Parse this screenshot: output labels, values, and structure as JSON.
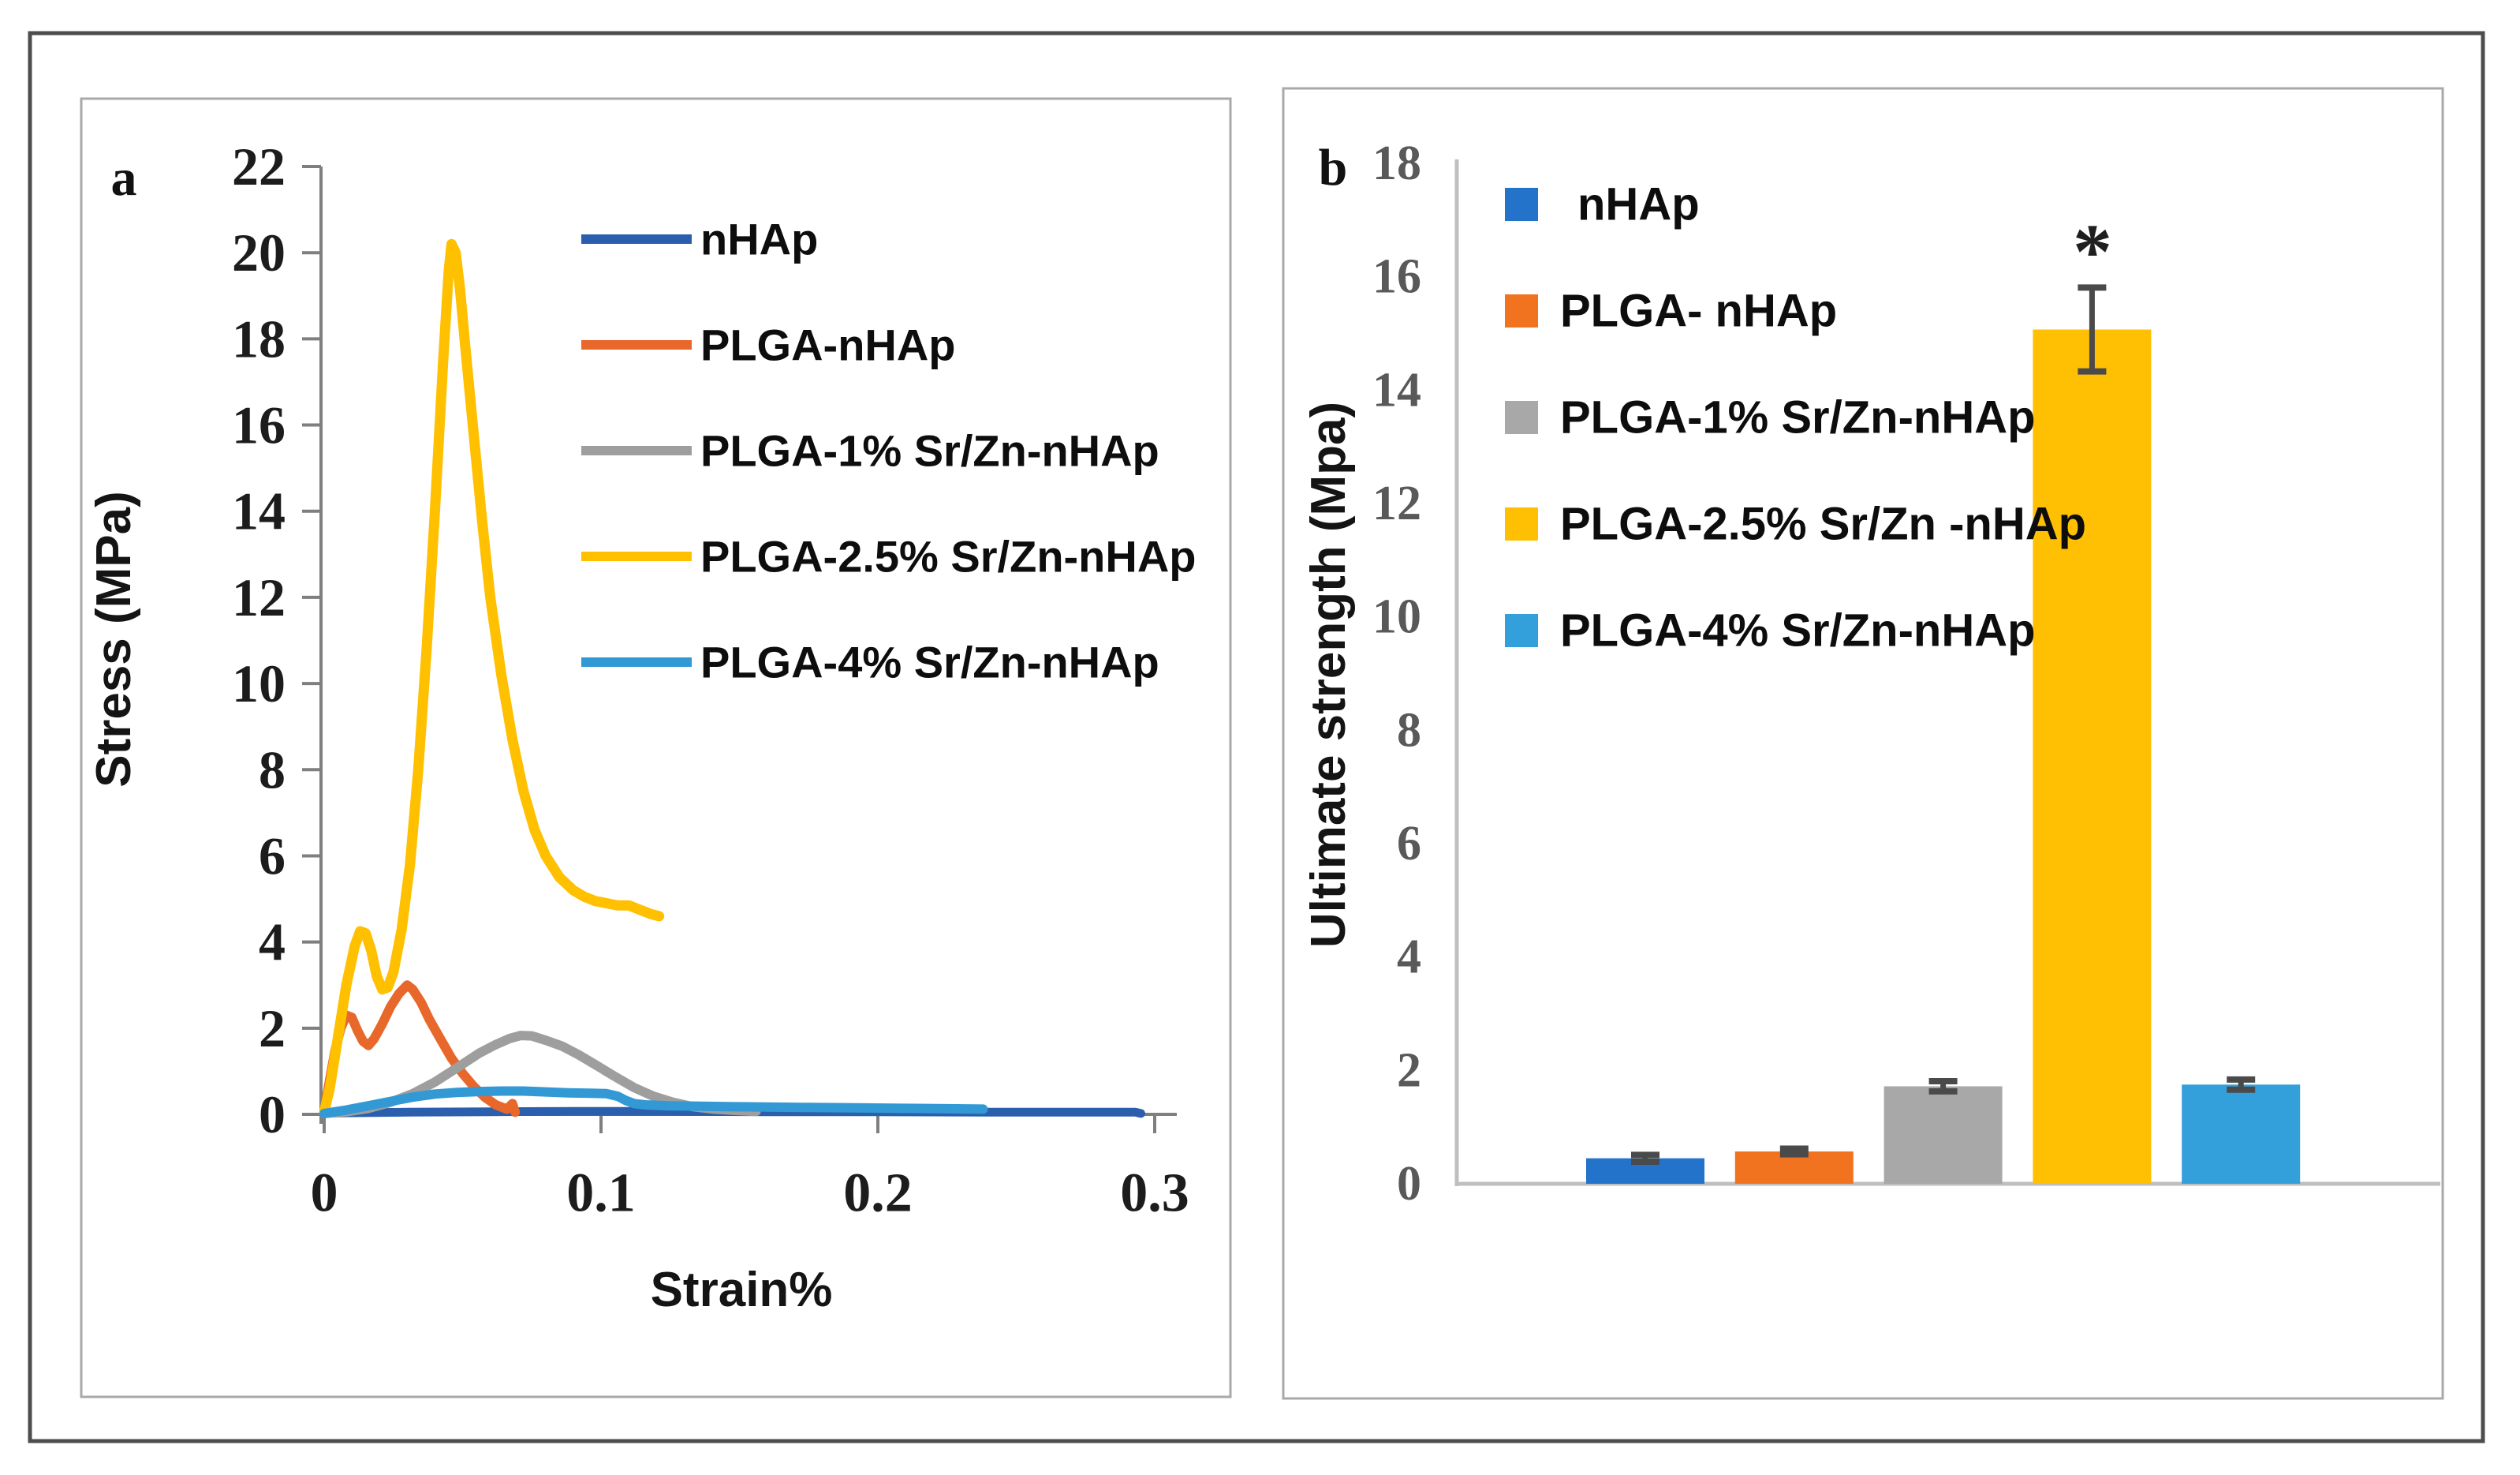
{
  "figure": {
    "panel_a_label": "a",
    "panel_b_label": "b"
  },
  "colors": {
    "outer_border": "#4D4D4D",
    "panel_border": "#A9A9A9",
    "axis_a": "#7F7F7F",
    "axis_b": "#BFBFBF",
    "error_bar": "#4A4A4A",
    "background": "#FFFFFF"
  },
  "chart_data": [
    {
      "panel": "a",
      "type": "line",
      "title": "",
      "xlabel": "Strain%",
      "ylabel": "Stress (MPa)",
      "xlim": [
        0,
        0.3
      ],
      "ylim": [
        0,
        22
      ],
      "xticks": [
        0,
        0.1,
        0.2,
        0.3
      ],
      "xtick_labels": [
        "0",
        "0.1",
        "0.2",
        "0.3"
      ],
      "ytick_step": 2,
      "ytick_labels": [
        "0",
        "2",
        "4",
        "6",
        "8",
        "10",
        "12",
        "14",
        "16",
        "18",
        "20",
        "22"
      ],
      "grid": false,
      "legend_position": "upper-right-inside",
      "series": [
        {
          "name": "nHAp",
          "color": "#2B5FAE",
          "stroke_width": 11,
          "points": [
            [
              0,
              0.03
            ],
            [
              0.03,
              0.05
            ],
            [
              0.06,
              0.06
            ],
            [
              0.09,
              0.07
            ],
            [
              0.12,
              0.07
            ],
            [
              0.16,
              0.06
            ],
            [
              0.2,
              0.06
            ],
            [
              0.24,
              0.05
            ],
            [
              0.27,
              0.05
            ],
            [
              0.293,
              0.05
            ],
            [
              0.295,
              0.02
            ]
          ]
        },
        {
          "name": "PLGA-nHAp",
          "color": "#E8682C",
          "stroke_width": 12,
          "points": [
            [
              0,
              0.05
            ],
            [
              0.002,
              0.8
            ],
            [
              0.004,
              1.5
            ],
            [
              0.006,
              2.0
            ],
            [
              0.008,
              2.3
            ],
            [
              0.01,
              2.25
            ],
            [
              0.012,
              1.95
            ],
            [
              0.014,
              1.7
            ],
            [
              0.016,
              1.6
            ],
            [
              0.018,
              1.75
            ],
            [
              0.021,
              2.1
            ],
            [
              0.024,
              2.5
            ],
            [
              0.027,
              2.8
            ],
            [
              0.03,
              3.0
            ],
            [
              0.032,
              2.9
            ],
            [
              0.035,
              2.6
            ],
            [
              0.038,
              2.2
            ],
            [
              0.042,
              1.75
            ],
            [
              0.046,
              1.3
            ],
            [
              0.05,
              0.95
            ],
            [
              0.054,
              0.65
            ],
            [
              0.058,
              0.4
            ],
            [
              0.062,
              0.22
            ],
            [
              0.066,
              0.12
            ],
            [
              0.068,
              0.25
            ],
            [
              0.069,
              0.05
            ]
          ]
        },
        {
          "name": "PLGA-1% Sr/Zn-nHAp",
          "color": "#9E9E9E",
          "stroke_width": 12,
          "points": [
            [
              0,
              0.02
            ],
            [
              0.008,
              0.06
            ],
            [
              0.016,
              0.14
            ],
            [
              0.024,
              0.28
            ],
            [
              0.032,
              0.48
            ],
            [
              0.04,
              0.75
            ],
            [
              0.048,
              1.08
            ],
            [
              0.056,
              1.42
            ],
            [
              0.062,
              1.62
            ],
            [
              0.067,
              1.76
            ],
            [
              0.071,
              1.83
            ],
            [
              0.075,
              1.82
            ],
            [
              0.08,
              1.72
            ],
            [
              0.086,
              1.58
            ],
            [
              0.092,
              1.38
            ],
            [
              0.098,
              1.15
            ],
            [
              0.105,
              0.88
            ],
            [
              0.112,
              0.62
            ],
            [
              0.119,
              0.42
            ],
            [
              0.126,
              0.28
            ],
            [
              0.133,
              0.18
            ],
            [
              0.141,
              0.12
            ],
            [
              0.149,
              0.09
            ],
            [
              0.156,
              0.07
            ]
          ]
        },
        {
          "name": "PLGA-2.5% Sr/Zn-nHAp",
          "color": "#FFC000",
          "stroke_width": 13,
          "points": [
            [
              0,
              0.05
            ],
            [
              0.002,
              0.6
            ],
            [
              0.005,
              1.8
            ],
            [
              0.008,
              3.0
            ],
            [
              0.011,
              3.9
            ],
            [
              0.013,
              4.25
            ],
            [
              0.015,
              4.2
            ],
            [
              0.017,
              3.8
            ],
            [
              0.019,
              3.2
            ],
            [
              0.021,
              2.9
            ],
            [
              0.023,
              2.95
            ],
            [
              0.025,
              3.3
            ],
            [
              0.028,
              4.3
            ],
            [
              0.031,
              5.8
            ],
            [
              0.034,
              8.0
            ],
            [
              0.037,
              10.8
            ],
            [
              0.04,
              14.0
            ],
            [
              0.043,
              17.5
            ],
            [
              0.045,
              19.6
            ],
            [
              0.046,
              20.2
            ],
            [
              0.0475,
              20.0
            ],
            [
              0.049,
              19.2
            ],
            [
              0.051,
              17.8
            ],
            [
              0.054,
              15.8
            ],
            [
              0.057,
              13.8
            ],
            [
              0.06,
              12.0
            ],
            [
              0.064,
              10.2
            ],
            [
              0.068,
              8.7
            ],
            [
              0.072,
              7.5
            ],
            [
              0.076,
              6.6
            ],
            [
              0.08,
              6.0
            ],
            [
              0.085,
              5.5
            ],
            [
              0.09,
              5.2
            ],
            [
              0.094,
              5.05
            ],
            [
              0.098,
              4.95
            ],
            [
              0.102,
              4.9
            ],
            [
              0.106,
              4.85
            ],
            [
              0.11,
              4.85
            ],
            [
              0.114,
              4.75
            ],
            [
              0.118,
              4.65
            ],
            [
              0.121,
              4.6
            ]
          ]
        },
        {
          "name": "PLGA-4% Sr/Zn-nHAp",
          "color": "#3399D4",
          "stroke_width": 12,
          "points": [
            [
              0,
              0.02
            ],
            [
              0.008,
              0.1
            ],
            [
              0.016,
              0.2
            ],
            [
              0.024,
              0.3
            ],
            [
              0.032,
              0.4
            ],
            [
              0.04,
              0.47
            ],
            [
              0.048,
              0.51
            ],
            [
              0.056,
              0.53
            ],
            [
              0.064,
              0.54
            ],
            [
              0.072,
              0.54
            ],
            [
              0.08,
              0.52
            ],
            [
              0.088,
              0.5
            ],
            [
              0.096,
              0.49
            ],
            [
              0.102,
              0.48
            ],
            [
              0.106,
              0.42
            ],
            [
              0.109,
              0.32
            ],
            [
              0.112,
              0.25
            ],
            [
              0.116,
              0.22
            ],
            [
              0.124,
              0.2
            ],
            [
              0.134,
              0.19
            ],
            [
              0.146,
              0.18
            ],
            [
              0.16,
              0.17
            ],
            [
              0.175,
              0.16
            ],
            [
              0.192,
              0.15
            ],
            [
              0.21,
              0.14
            ],
            [
              0.225,
              0.13
            ],
            [
              0.238,
              0.12
            ]
          ]
        }
      ]
    },
    {
      "panel": "b",
      "type": "bar",
      "title": "",
      "xlabel": "",
      "ylabel": "Ultimate strength (Mpa)",
      "ylim": [
        0,
        18
      ],
      "ytick_step": 2,
      "ytick_labels": [
        "0",
        "2",
        "4",
        "6",
        "8",
        "10",
        "12",
        "14",
        "16",
        "18"
      ],
      "grid": false,
      "categories": [
        "nHAp",
        "PLGA- nHAp",
        "PLGA-1% Sr/Zn-nHAp",
        "PLGA-2.5% Sr/Zn -nHAp",
        "PLGA-4% Sr/Zn-nHAp"
      ],
      "values": [
        0.45,
        0.57,
        1.72,
        15.07,
        1.75
      ],
      "errors": [
        0.06,
        0.05,
        0.09,
        0.74,
        0.09
      ],
      "bar_colors": [
        "#2273C9",
        "#F2731F",
        "#A8A8A8",
        "#FFC003",
        "#33A0DB"
      ],
      "legend_position": "upper-left-inside",
      "significance": {
        "label": "*",
        "category": "PLGA-2.5% Sr/Zn -nHAp"
      }
    }
  ]
}
